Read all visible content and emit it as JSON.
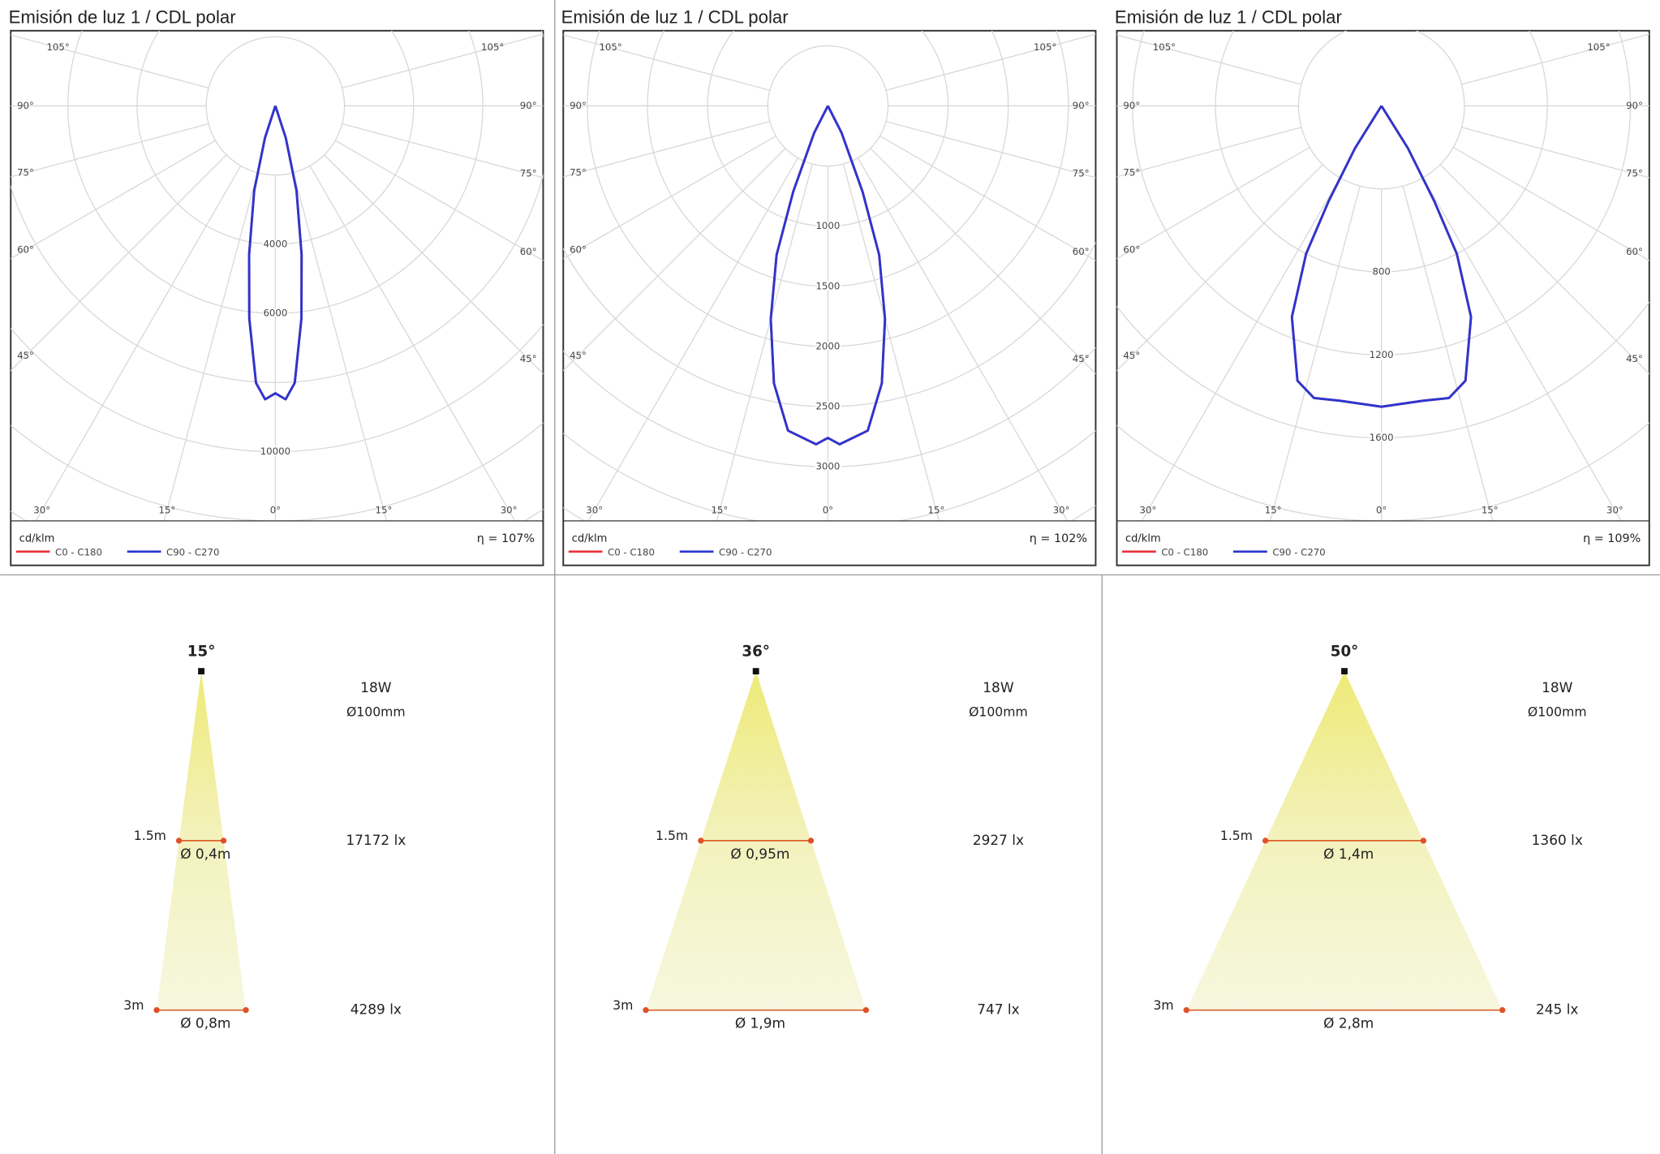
{
  "chart_data": [
    {
      "type": "polar",
      "title": "Emisión de luz 1 / CDL polar",
      "unit": "cd/klm",
      "efficiency": "η = 107%",
      "angles": [
        -90,
        -18,
        -14,
        -10,
        -7,
        -4,
        -2,
        0,
        2,
        4,
        7,
        10,
        14,
        18,
        90
      ],
      "series": [
        {
          "name": "C0 - C180",
          "color": "#e8323c",
          "values": [
            0,
            975,
            2530,
            4370,
            6190,
            8030,
            8490,
            8310,
            8490,
            8030,
            6190,
            4370,
            2530,
            975,
            0
          ]
        },
        {
          "name": "C90 - C270",
          "color": "#2b36d0",
          "values": [
            0,
            975,
            2530,
            4370,
            6190,
            8030,
            8490,
            8310,
            8490,
            8030,
            6190,
            4370,
            2530,
            975,
            0
          ]
        }
      ],
      "rlim": [
        0,
        12000
      ],
      "rticks": [
        {
          "value": 2000,
          "label": null
        },
        4000,
        6000,
        {
          "value": 8000,
          "label": null
        },
        10000,
        {
          "value": 12000,
          "label": null
        },
        {
          "value": 14000,
          "label": null
        },
        {
          "value": 16000,
          "label": null
        }
      ],
      "thetaticks": [
        {
          "value": 0,
          "label": "0°"
        },
        {
          "value": 15,
          "label": "15°"
        },
        {
          "value": 30,
          "label": "30°"
        },
        {
          "value": 45,
          "label": "45°"
        },
        {
          "value": 60,
          "label": "60°"
        },
        {
          "value": 75,
          "label": "75°"
        },
        {
          "value": 90,
          "label": "90°"
        },
        {
          "value": 105,
          "label": "105°"
        }
      ]
    },
    {
      "type": "polar",
      "title": "Emisión de luz 1 / CDL polar",
      "unit": "cd/klm",
      "efficiency": "η = 102%",
      "angles": [
        -90,
        -27,
        -22,
        -19,
        -15,
        -11,
        -7,
        -2,
        0,
        2,
        7,
        11,
        15,
        19,
        22,
        27,
        90
      ],
      "series": [
        {
          "name": "C0 - C180",
          "color": "#e8323c",
          "values": [
            0,
            250,
            770,
            1310,
            1835,
            2350,
            2720,
            2815,
            2760,
            2815,
            2720,
            2350,
            1835,
            1310,
            770,
            250,
            0
          ]
        },
        {
          "name": "C90 - C270",
          "color": "#2b36d0",
          "values": [
            0,
            250,
            770,
            1310,
            1835,
            2350,
            2720,
            2815,
            2760,
            2815,
            2720,
            2350,
            1835,
            1310,
            770,
            250,
            0
          ]
        }
      ],
      "rlim": [
        0,
        3450
      ],
      "rticks": [
        {
          "value": 500,
          "label": null
        },
        1000,
        1500,
        2000,
        2500,
        3000,
        {
          "value": 3500,
          "label": null
        },
        {
          "value": 4000,
          "label": null
        },
        {
          "value": 4500,
          "label": null
        },
        {
          "value": 5000,
          "label": null
        }
      ],
      "thetaticks": [
        {
          "value": 0,
          "label": "0°"
        },
        {
          "value": 15,
          "label": "15°"
        },
        {
          "value": 30,
          "label": "30°"
        },
        {
          "value": 45,
          "label": "45°"
        },
        {
          "value": 60,
          "label": "60°"
        },
        {
          "value": 75,
          "label": "75°"
        },
        {
          "value": 90,
          "label": "90°"
        },
        {
          "value": 105,
          "label": "105°"
        }
      ]
    },
    {
      "type": "polar",
      "title": "Emisión de luz 1 / CDL polar",
      "unit": "cd/klm",
      "efficiency": "η = 109%",
      "angles": [
        -90,
        -32,
        -29,
        -27,
        -23,
        -17,
        -13,
        -8,
        0,
        8,
        13,
        17,
        23,
        27,
        29,
        32,
        90
      ],
      "series": [
        {
          "name": "C0 - C180",
          "color": "#e8323c",
          "values": [
            0,
            240,
            525,
            800,
            1105,
            1385,
            1445,
            1435,
            1450,
            1435,
            1445,
            1385,
            1105,
            800,
            525,
            240,
            0
          ]
        },
        {
          "name": "C90 - C270",
          "color": "#2b36d0",
          "values": [
            0,
            240,
            525,
            800,
            1105,
            1385,
            1445,
            1435,
            1450,
            1435,
            1445,
            1385,
            1105,
            800,
            525,
            240,
            0
          ]
        }
      ],
      "rlim": [
        0,
        2000
      ],
      "rticks": [
        {
          "value": 400,
          "label": null
        },
        800,
        1200,
        1600,
        {
          "value": 2000,
          "label": null
        },
        {
          "value": 2400,
          "label": null
        },
        {
          "value": 2800,
          "label": null
        }
      ],
      "thetaticks": [
        {
          "value": 0,
          "label": "0°"
        },
        {
          "value": 15,
          "label": "15°"
        },
        {
          "value": 30,
          "label": "30°"
        },
        {
          "value": 45,
          "label": "45°"
        },
        {
          "value": 60,
          "label": "60°"
        },
        {
          "value": 75,
          "label": "75°"
        },
        {
          "value": 90,
          "label": "90°"
        },
        {
          "value": 105,
          "label": "105°"
        }
      ]
    }
  ],
  "beams": [
    {
      "angle": {
        "value": 15,
        "label": "15°"
      },
      "power": "18W",
      "diameter": "Ø100mm",
      "levels": [
        {
          "height": {
            "value": 1.5,
            "label": "1.5m"
          },
          "spot": "Ø 0,4m",
          "illuminance": "17172 lx"
        },
        {
          "height": {
            "value": 3,
            "label": "3m"
          },
          "spot": "Ø 0,8m",
          "illuminance": "4289 lx"
        }
      ]
    },
    {
      "angle": {
        "value": 36,
        "label": "36°"
      },
      "power": "18W",
      "diameter": "Ø100mm",
      "levels": [
        {
          "height": {
            "value": 1.5,
            "label": "1.5m"
          },
          "spot": "Ø 0,95m",
          "illuminance": "2927 lx"
        },
        {
          "height": {
            "value": 3,
            "label": "3m"
          },
          "spot": "Ø 1,9m",
          "illuminance": "747 lx"
        }
      ]
    },
    {
      "angle": {
        "value": 50,
        "label": "50°"
      },
      "power": "18W",
      "diameter": "Ø100mm",
      "levels": [
        {
          "height": {
            "value": 1.5,
            "label": "1.5m"
          },
          "spot": "Ø 1,4m",
          "illuminance": "1360 lx"
        },
        {
          "height": {
            "value": 3,
            "label": "3m"
          },
          "spot": "Ø 2,8m",
          "illuminance": "245 lx"
        }
      ]
    }
  ]
}
